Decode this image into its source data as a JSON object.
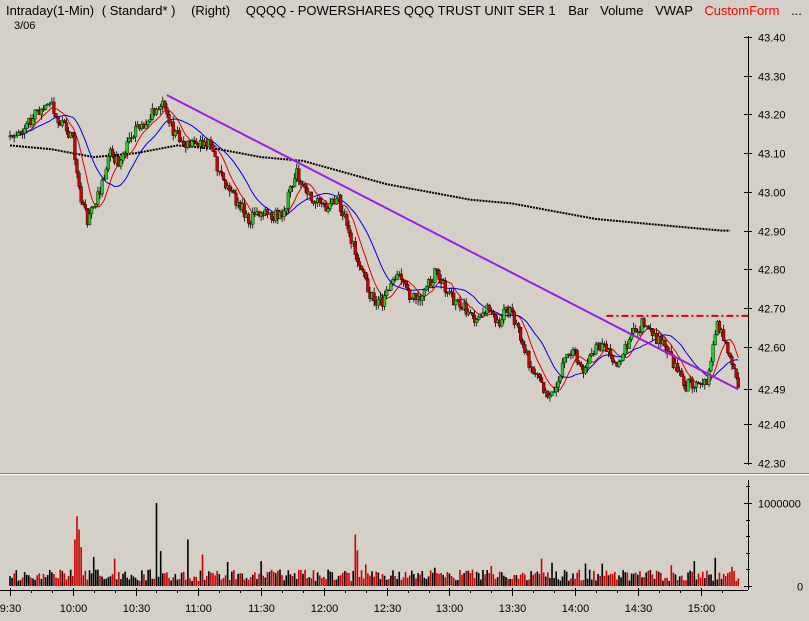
{
  "header": {
    "items": [
      {
        "text": "Intraday(1-Min)",
        "color": "#000000"
      },
      {
        "text": "( Standard* )",
        "color": "#000000"
      },
      {
        "text": "(Right)",
        "color": "#000000"
      },
      {
        "text": "QQQQ - POWERSHARES QQQ TRUST UNIT SER 1",
        "color": "#000000"
      },
      {
        "text": "Bar",
        "color": "#000000"
      },
      {
        "text": "Volume",
        "color": "#000000"
      },
      {
        "text": "VWAP",
        "color": "#000000"
      },
      {
        "text": "CustomForm",
        "color": "#ff0000"
      },
      {
        "text": "...",
        "color": "#000000"
      }
    ],
    "date": "3/06"
  },
  "chart_data": {
    "type": "candlestick",
    "symbol": "QQQQ",
    "price_axis": {
      "ticks": [
        "43.40",
        "43.30",
        "43.20",
        "43.10",
        "43.00",
        "42.90",
        "42.80",
        "42.70",
        "42.60",
        "42.49",
        "42.40",
        "42.30"
      ],
      "range": [
        42.3,
        43.4
      ]
    },
    "volume_axis": {
      "ticks": [
        "1000000",
        "0"
      ],
      "range": [
        0,
        1850000
      ]
    },
    "time_axis": {
      "ticks": [
        "9:30",
        "10:00",
        "10:30",
        "11:00",
        "11:30",
        "12:00",
        "12:30",
        "13:00",
        "13:30",
        "14:00",
        "14:30",
        "15:00"
      ],
      "range_minutes": [
        0,
        345
      ]
    },
    "key_prices": [
      {
        "t": 0,
        "p": 43.14
      },
      {
        "t": 8,
        "p": 43.17
      },
      {
        "t": 18,
        "p": 43.24
      },
      {
        "t": 24,
        "p": 43.18
      },
      {
        "t": 30,
        "p": 43.14
      },
      {
        "t": 34,
        "p": 42.97
      },
      {
        "t": 37,
        "p": 42.93
      },
      {
        "t": 43,
        "p": 43.0
      },
      {
        "t": 48,
        "p": 43.1
      },
      {
        "t": 52,
        "p": 43.07
      },
      {
        "t": 58,
        "p": 43.15
      },
      {
        "t": 65,
        "p": 43.18
      },
      {
        "t": 73,
        "p": 43.24
      },
      {
        "t": 78,
        "p": 43.16
      },
      {
        "t": 85,
        "p": 43.12
      },
      {
        "t": 95,
        "p": 43.13
      },
      {
        "t": 100,
        "p": 43.05
      },
      {
        "t": 108,
        "p": 42.98
      },
      {
        "t": 114,
        "p": 42.93
      },
      {
        "t": 122,
        "p": 42.94
      },
      {
        "t": 130,
        "p": 42.94
      },
      {
        "t": 137,
        "p": 43.05
      },
      {
        "t": 142,
        "p": 43.0
      },
      {
        "t": 150,
        "p": 42.96
      },
      {
        "t": 157,
        "p": 42.98
      },
      {
        "t": 163,
        "p": 42.88
      },
      {
        "t": 168,
        "p": 42.8
      },
      {
        "t": 172,
        "p": 42.73
      },
      {
        "t": 178,
        "p": 42.71
      },
      {
        "t": 185,
        "p": 42.79
      },
      {
        "t": 192,
        "p": 42.72
      },
      {
        "t": 198,
        "p": 42.74
      },
      {
        "t": 204,
        "p": 42.8
      },
      {
        "t": 210,
        "p": 42.73
      },
      {
        "t": 217,
        "p": 42.7
      },
      {
        "t": 222,
        "p": 42.66
      },
      {
        "t": 228,
        "p": 42.7
      },
      {
        "t": 233,
        "p": 42.66
      },
      {
        "t": 238,
        "p": 42.7
      },
      {
        "t": 243,
        "p": 42.64
      },
      {
        "t": 248,
        "p": 42.56
      },
      {
        "t": 254,
        "p": 42.5
      },
      {
        "t": 259,
        "p": 42.47
      },
      {
        "t": 264,
        "p": 42.55
      },
      {
        "t": 269,
        "p": 42.6
      },
      {
        "t": 274,
        "p": 42.53
      },
      {
        "t": 280,
        "p": 42.6
      },
      {
        "t": 286,
        "p": 42.6
      },
      {
        "t": 290,
        "p": 42.55
      },
      {
        "t": 296,
        "p": 42.62
      },
      {
        "t": 302,
        "p": 42.66
      },
      {
        "t": 308,
        "p": 42.62
      },
      {
        "t": 313,
        "p": 42.6
      },
      {
        "t": 318,
        "p": 42.55
      },
      {
        "t": 323,
        "p": 42.5
      },
      {
        "t": 328,
        "p": 42.51
      },
      {
        "t": 333,
        "p": 42.5
      },
      {
        "t": 338,
        "p": 42.66
      },
      {
        "t": 342,
        "p": 42.62
      },
      {
        "t": 345,
        "p": 42.55
      },
      {
        "t": 348,
        "p": 42.5
      }
    ],
    "volume_spikes": [
      {
        "t": 32,
        "v": 840000
      },
      {
        "t": 33,
        "v": 680000
      },
      {
        "t": 31,
        "v": 560000
      },
      {
        "t": 34,
        "v": 470000
      },
      {
        "t": 40,
        "v": 350000
      },
      {
        "t": 50,
        "v": 330000
      },
      {
        "t": 70,
        "v": 1000000
      },
      {
        "t": 72,
        "v": 420000
      },
      {
        "t": 85,
        "v": 560000
      },
      {
        "t": 92,
        "v": 380000
      },
      {
        "t": 104,
        "v": 290000
      },
      {
        "t": 120,
        "v": 300000
      },
      {
        "t": 165,
        "v": 620000
      },
      {
        "t": 166,
        "v": 430000
      },
      {
        "t": 170,
        "v": 260000
      },
      {
        "t": 203,
        "v": 220000
      },
      {
        "t": 230,
        "v": 240000
      },
      {
        "t": 254,
        "v": 330000
      },
      {
        "t": 259,
        "v": 280000
      },
      {
        "t": 275,
        "v": 270000
      },
      {
        "t": 283,
        "v": 270000
      },
      {
        "t": 316,
        "v": 250000
      },
      {
        "t": 327,
        "v": 300000
      },
      {
        "t": 337,
        "v": 340000
      },
      {
        "t": 345,
        "v": 230000
      }
    ],
    "vwap": [
      {
        "t": 0,
        "p": 43.12
      },
      {
        "t": 20,
        "p": 43.11
      },
      {
        "t": 40,
        "p": 43.09
      },
      {
        "t": 60,
        "p": 43.1
      },
      {
        "t": 80,
        "p": 43.12
      },
      {
        "t": 100,
        "p": 43.11
      },
      {
        "t": 120,
        "p": 43.09
      },
      {
        "t": 140,
        "p": 43.08
      },
      {
        "t": 160,
        "p": 43.05
      },
      {
        "t": 180,
        "p": 43.02
      },
      {
        "t": 200,
        "p": 43.0
      },
      {
        "t": 220,
        "p": 42.98
      },
      {
        "t": 240,
        "p": 42.97
      },
      {
        "t": 260,
        "p": 42.95
      },
      {
        "t": 280,
        "p": 42.93
      },
      {
        "t": 300,
        "p": 42.92
      },
      {
        "t": 320,
        "p": 42.91
      },
      {
        "t": 340,
        "p": 42.9
      },
      {
        "t": 344,
        "p": 42.9
      }
    ],
    "trendline": {
      "start": {
        "t": 75,
        "p": 43.25
      },
      "end": {
        "t": 348,
        "p": 42.49
      },
      "color": "#9a1ee6"
    },
    "resistance": {
      "price": 42.68,
      "t_start": 285,
      "t_end": 360,
      "color": "#e00000"
    },
    "colors": {
      "up": "#22cc22",
      "down": "#cc0000",
      "vwap": "#000000",
      "ma_fast": "#e00000",
      "ma_slow": "#0000e0",
      "grid": "#c8c4bc"
    }
  }
}
